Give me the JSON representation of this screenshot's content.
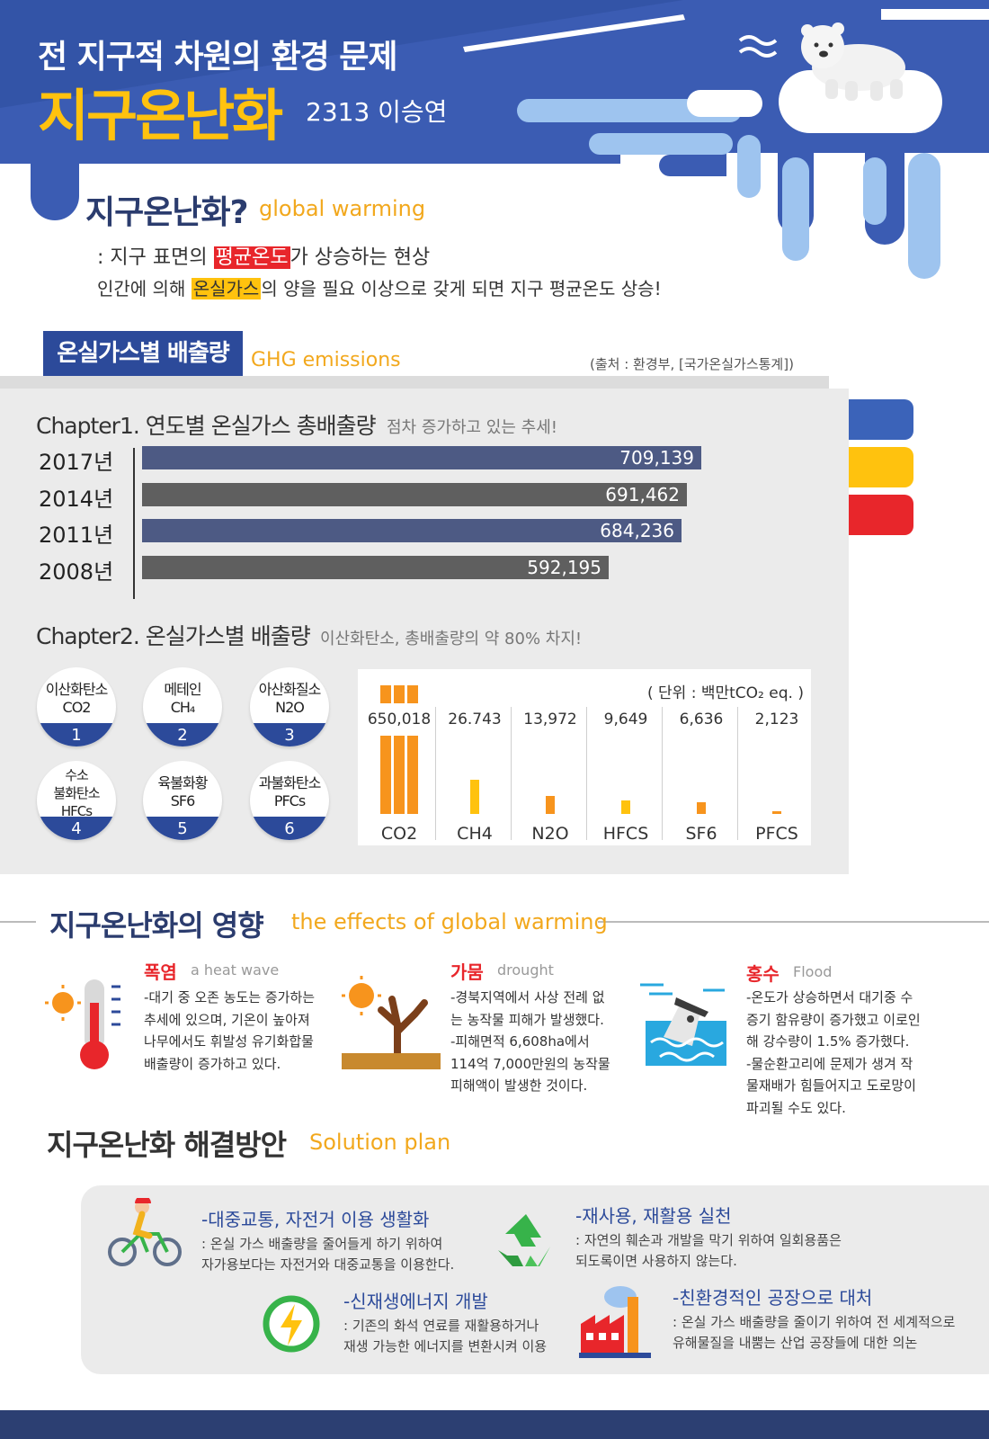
{
  "header": {
    "subtitle": "전 지구적 차원의 환경 문제",
    "title": "지구온난화",
    "author": "2313 이승연"
  },
  "definition": {
    "title": "지구온난화?",
    "title_en": "global warming",
    "line1_pre": ": 지구 표면의 ",
    "line1_highlight": "평균온도",
    "line1_post": "가 상승하는 현상",
    "line2_pre": "인간에 의해 ",
    "line2_highlight": "온실가스",
    "line2_post": "의 양을 필요 이상으로 갖게 되면 지구 평균온도 상승!"
  },
  "ghg_section": {
    "tag": "온실가스별 배출량",
    "tag_en": "GHG emissions",
    "source": "(출처 : 환경부, [국가온실가스통계])"
  },
  "colors": {
    "navy": "#2c4a9a",
    "dark_navy": "#2b3c6e",
    "yellow": "#ffc20e",
    "red": "#e8262b",
    "bar_blue": "#4d5a84",
    "bar_grey": "#5f5f5f",
    "orange": "#f7941d"
  },
  "chapter1": {
    "title": "Chapter1. 연도별 온실가스 총배출량",
    "subtitle": "점차 증가하고 있는 추세!"
  },
  "chapter2": {
    "title": "Chapter2. 온실가스별 배출량",
    "subtitle": "이산화탄소, 총배출량의 약 80% 차지!",
    "unit": "( 단위 : 백만tCO₂ eq. )"
  },
  "gases": [
    {
      "name": "이산화탄소",
      "formula": "CO2",
      "num": "1"
    },
    {
      "name": "메테인",
      "formula": "CH₄",
      "num": "2"
    },
    {
      "name": "아산화질소",
      "formula": "N2O",
      "num": "3"
    },
    {
      "name": "수소 불화탄소",
      "formula": "HFCs",
      "num": "4"
    },
    {
      "name": "육불화황",
      "formula": "SF6",
      "num": "5"
    },
    {
      "name": "과불화탄소",
      "formula": "PFCs",
      "num": "6"
    }
  ],
  "chart_data": [
    {
      "type": "bar",
      "orientation": "horizontal",
      "categories": [
        "2017년",
        "2014년",
        "2011년",
        "2008년"
      ],
      "values": [
        709139,
        691462,
        684236,
        592195
      ],
      "value_labels": [
        "709,139",
        "691,462",
        "684,236",
        "592,195"
      ]
    },
    {
      "type": "bar",
      "categories": [
        "CO2",
        "CH4",
        "N2O",
        "HFCS",
        "SF6",
        "PFCS"
      ],
      "values": [
        650018,
        26743,
        13972,
        9649,
        6636,
        2123
      ],
      "value_labels": [
        "650,018",
        "26.743",
        "13,972",
        "9,649",
        "6,636",
        "2,123"
      ]
    }
  ],
  "effects": {
    "title": "지구온난화의 영향",
    "title_en": "the effects of global warming",
    "items": [
      {
        "name": "폭염",
        "name_en": "a heat wave",
        "icon": "thermometer-icon",
        "lines": [
          "-대기 중 오존 농도는 증가하는",
          "추세에 있으며, 기온이 높아져",
          "나무에서도 휘발성 유기화합물",
          "배출량이 증가하고 있다."
        ]
      },
      {
        "name": "가뭄",
        "name_en": "drought",
        "icon": "dry-tree-icon",
        "lines": [
          "-경북지역에서 사상 전례 없",
          "는 농작물 피해가 발생했다.",
          "-피해면적 6,608ha에서",
          "114억 7,000만원의 농작물",
          "피해액이 발생한 것이다."
        ]
      },
      {
        "name": "홍수",
        "name_en": "Flood",
        "icon": "flooded-house-icon",
        "lines": [
          "-온도가 상승하면서 대기중 수",
          "증기 함유량이 증가했고 이로인",
          "해 강수량이 1.5% 증가했다.",
          "-물순환고리에 문제가 생겨 작",
          "물재배가 힘들어지고 도로망이",
          "파괴될 수도 있다."
        ]
      }
    ]
  },
  "solutions": {
    "title": "지구온난화 해결방안",
    "title_en": "Solution plan",
    "items": [
      {
        "title": "-대중교통, 자전거 이용 생활화",
        "icon": "cyclist-icon",
        "lines": [
          ": 온실 가스 배출량을 줄어들게 하기 위하여",
          "자가용보다는 자전거와 대중교통을 이용한다."
        ]
      },
      {
        "title": "-재사용, 재활용 실천",
        "icon": "recycle-icon",
        "lines": [
          ": 자연의 훼손과 개발을 막기 위하여 일회용품은",
          "되도록이면 사용하지 않는다."
        ]
      },
      {
        "title": "-신재생에너지 개발",
        "icon": "energy-icon",
        "lines": [
          ": 기존의 화석 연료를 재활용하거나",
          "재생 가능한 에너지를 변환시켜 이용"
        ]
      },
      {
        "title": "-친환경적인 공장으로 대처",
        "icon": "factory-icon",
        "lines": [
          ": 온실 가스 배출량을 줄이기 위하여 전 세계적으로",
          "유해물질을 내뿜는 산업 공장들에 대한 의논"
        ]
      }
    ]
  }
}
